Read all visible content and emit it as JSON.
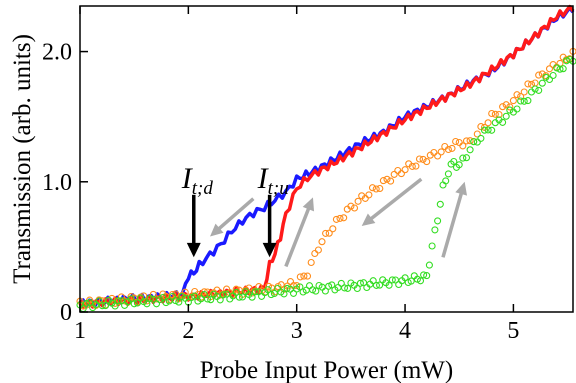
{
  "chart_data": {
    "type": "line",
    "xlabel": "Probe Input Power (mW)",
    "ylabel": "Transmission (arb. units)",
    "xlim": [
      1,
      5.55
    ],
    "ylim": [
      0,
      2.35
    ],
    "xticks": [
      1,
      2,
      3,
      4,
      5
    ],
    "xtick_labels": [
      "1",
      "2",
      "3",
      "4",
      "5"
    ],
    "yticks": [
      0,
      1.0,
      2.0
    ],
    "ytick_labels": [
      "0",
      "1.0",
      "2.0"
    ],
    "grid": false,
    "legend": "none",
    "annotations": [
      {
        "text_main": "I",
        "text_sub": "t;d",
        "x": 2.05,
        "y": 0.42
      },
      {
        "text_main": "I",
        "text_sub": "t;u",
        "x": 2.75,
        "y": 0.42
      }
    ],
    "series": [
      {
        "style": "line",
        "color": "#1a1aff",
        "x": [
          1.0,
          1.2,
          1.4,
          1.6,
          1.8,
          1.95,
          2.0,
          2.05,
          2.1,
          2.2,
          2.3,
          2.4,
          2.5,
          2.6,
          2.7,
          2.8,
          2.9,
          3.0,
          3.2,
          3.4,
          3.6,
          3.8,
          4.0,
          4.2,
          4.4,
          4.6,
          4.8,
          5.0,
          5.2,
          5.4,
          5.55
        ],
        "y": [
          0.07,
          0.08,
          0.1,
          0.11,
          0.12,
          0.14,
          0.28,
          0.3,
          0.36,
          0.44,
          0.52,
          0.62,
          0.7,
          0.76,
          0.8,
          0.86,
          0.92,
          1.02,
          1.1,
          1.2,
          1.3,
          1.38,
          1.5,
          1.58,
          1.66,
          1.76,
          1.85,
          1.98,
          2.12,
          2.26,
          2.33
        ]
      },
      {
        "style": "line",
        "color": "#ff1a1a",
        "x": [
          1.0,
          1.5,
          2.0,
          2.5,
          2.7,
          2.75,
          2.8,
          2.85,
          2.9,
          3.0,
          3.1,
          3.2,
          3.4,
          3.6,
          3.8,
          4.0,
          4.2,
          4.4,
          4.6,
          4.8,
          5.0,
          5.2,
          5.4,
          5.55
        ],
        "y": [
          0.06,
          0.09,
          0.12,
          0.16,
          0.18,
          0.36,
          0.45,
          0.58,
          0.75,
          0.95,
          1.03,
          1.08,
          1.17,
          1.27,
          1.37,
          1.48,
          1.57,
          1.66,
          1.75,
          1.86,
          1.98,
          2.12,
          2.27,
          2.34
        ]
      },
      {
        "style": "markers",
        "color": "#ff8c1a",
        "x": [
          1.0,
          1.5,
          2.0,
          2.5,
          2.8,
          3.0,
          3.1,
          3.2,
          3.3,
          3.4,
          3.5,
          3.6,
          3.7,
          3.8,
          3.9,
          4.0,
          4.1,
          4.2,
          4.3,
          4.4,
          4.5,
          4.6,
          4.7,
          4.8,
          4.9,
          5.0,
          5.1,
          5.2,
          5.3,
          5.4,
          5.55
        ],
        "y": [
          0.06,
          0.1,
          0.13,
          0.16,
          0.18,
          0.22,
          0.3,
          0.5,
          0.62,
          0.72,
          0.8,
          0.87,
          0.93,
          0.99,
          1.05,
          1.1,
          1.14,
          1.18,
          1.22,
          1.26,
          1.3,
          1.3,
          1.4,
          1.5,
          1.56,
          1.62,
          1.7,
          1.78,
          1.84,
          1.9,
          1.98
        ]
      },
      {
        "style": "markers",
        "color": "#33dd22",
        "x": [
          1.0,
          1.5,
          2.0,
          2.5,
          3.0,
          3.5,
          4.0,
          4.2,
          4.25,
          4.3,
          4.35,
          4.4,
          4.45,
          4.5,
          4.6,
          4.7,
          4.8,
          4.9,
          5.0,
          5.1,
          5.2,
          5.3,
          5.4,
          5.55
        ],
        "y": [
          0.05,
          0.08,
          0.1,
          0.13,
          0.17,
          0.2,
          0.24,
          0.27,
          0.5,
          0.72,
          0.95,
          1.08,
          1.15,
          1.12,
          1.25,
          1.35,
          1.42,
          1.48,
          1.55,
          1.62,
          1.7,
          1.78,
          1.85,
          1.95
        ]
      }
    ],
    "arrows": [
      {
        "kind": "threshold",
        "color": "#000000",
        "x": 2.05,
        "y_from": 0.9,
        "y_to": 0.42
      },
      {
        "kind": "threshold",
        "color": "#000000",
        "x": 2.75,
        "y_from": 0.9,
        "y_to": 0.42
      },
      {
        "kind": "direction",
        "color": "#aaaaaa",
        "x1": 2.6,
        "y1": 0.87,
        "x2": 2.2,
        "y2": 0.58
      },
      {
        "kind": "direction",
        "color": "#aaaaaa",
        "x1": 2.9,
        "y1": 0.35,
        "x2": 3.15,
        "y2": 0.88
      },
      {
        "kind": "direction",
        "color": "#aaaaaa",
        "x1": 4.15,
        "y1": 1.02,
        "x2": 3.6,
        "y2": 0.66
      },
      {
        "kind": "direction",
        "color": "#aaaaaa",
        "x1": 4.35,
        "y1": 0.42,
        "x2": 4.55,
        "y2": 1.0
      }
    ]
  }
}
